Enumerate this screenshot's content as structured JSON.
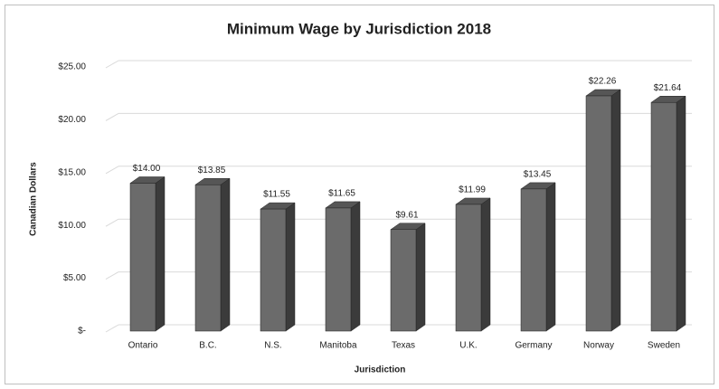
{
  "chart_data": {
    "type": "bar",
    "title": "Minimum Wage by Jurisdiction 2018",
    "x_label": "Jurisdiction",
    "y_label": "Canadian Dollars",
    "categories": [
      "Ontario",
      "B.C.",
      "N.S.",
      "Manitoba",
      "Texas",
      "U.K.",
      "Germany",
      "Norway",
      "Sweden"
    ],
    "values": [
      14.0,
      13.85,
      11.55,
      11.65,
      9.61,
      11.99,
      13.45,
      22.26,
      21.64
    ],
    "value_labels": [
      "$14.00",
      "$13.85",
      "$11.55",
      "$11.65",
      "$9.61",
      "$11.99",
      "$13.45",
      "$22.26",
      "$21.64"
    ],
    "color": "#6b6b6b",
    "ylim": [
      0,
      25
    ],
    "yticks": [
      {
        "value": 0,
        "label": "$-"
      },
      {
        "value": 5,
        "label": "$5.00"
      },
      {
        "value": 10,
        "label": "$10.00"
      },
      {
        "value": 15,
        "label": "$15.00"
      },
      {
        "value": 20,
        "label": "$20.00"
      },
      {
        "value": 25,
        "label": "$25.00"
      }
    ],
    "grid": true
  }
}
